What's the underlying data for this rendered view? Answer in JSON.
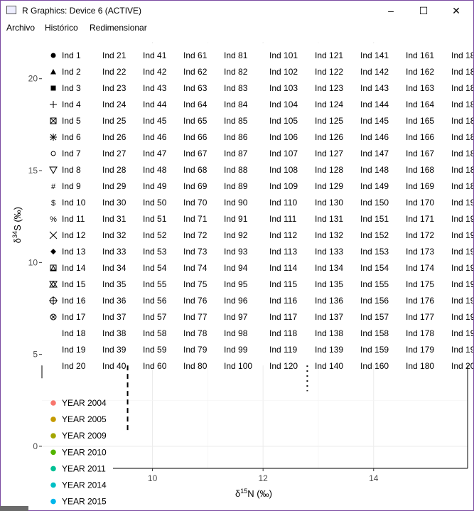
{
  "window": {
    "title": "R Graphics: Device 6 (ACTIVE)",
    "controls": {
      "minimize": "–",
      "maximize": "☐",
      "close": "✕"
    }
  },
  "menu": [
    "Archivo",
    "Histórico",
    "Redimensionar"
  ],
  "chart_data": {
    "type": "scatter",
    "xlabel": "δ15N (‰)",
    "ylabel": "δ34S (‰)",
    "x_ticks": [
      10,
      12,
      14
    ],
    "y_ticks": [
      0,
      5,
      10,
      15,
      20
    ],
    "xlim": [
      8.0,
      15.7
    ],
    "ylim": [
      -1.2,
      22.0
    ],
    "grid": true,
    "vertical_reference_lines": [
      {
        "x": 9.55,
        "y_from": 0.7,
        "y_to": 4.4,
        "style": "dashed"
      },
      {
        "x": 12.8,
        "y_from": 3.0,
        "y_to": 4.4,
        "style": "dotted"
      }
    ],
    "legend_individuals": {
      "labels": [
        "Ind 1",
        "Ind 2",
        "Ind 3",
        "Ind 4",
        "Ind 5",
        "Ind 6",
        "Ind 7",
        "Ind 8",
        "Ind 9",
        "Ind 10",
        "Ind 11",
        "Ind 12",
        "Ind 13",
        "Ind 14",
        "Ind 15",
        "Ind 16",
        "Ind 17",
        "Ind 18",
        "Ind 19",
        "Ind 20",
        "Ind 21",
        "Ind 22",
        "Ind 23",
        "Ind 24",
        "Ind 25",
        "Ind 26",
        "Ind 27",
        "Ind 28",
        "Ind 29",
        "Ind 30",
        "Ind 31",
        "Ind 32",
        "Ind 33",
        "Ind 34",
        "Ind 35",
        "Ind 36",
        "Ind 37",
        "Ind 38",
        "Ind 39",
        "Ind 40",
        "Ind 41",
        "Ind 42",
        "Ind 43",
        "Ind 44",
        "Ind 45",
        "Ind 46",
        "Ind 47",
        "Ind 48",
        "Ind 49",
        "Ind 50",
        "Ind 51",
        "Ind 52",
        "Ind 53",
        "Ind 54",
        "Ind 55",
        "Ind 56",
        "Ind 57",
        "Ind 58",
        "Ind 59",
        "Ind 60",
        "Ind 61",
        "Ind 62",
        "Ind 63",
        "Ind 64",
        "Ind 65",
        "Ind 66",
        "Ind 67",
        "Ind 68",
        "Ind 69",
        "Ind 70",
        "Ind 71",
        "Ind 72",
        "Ind 73",
        "Ind 74",
        "Ind 75",
        "Ind 76",
        "Ind 77",
        "Ind 78",
        "Ind 79",
        "Ind 80",
        "Ind 81",
        "Ind 82",
        "Ind 83",
        "Ind 84",
        "Ind 85",
        "Ind 86",
        "Ind 87",
        "Ind 88",
        "Ind 89",
        "Ind 90",
        "Ind 91",
        "Ind 92",
        "Ind 93",
        "Ind 94",
        "Ind 95",
        "Ind 96",
        "Ind 97",
        "Ind 98",
        "Ind 99",
        "Ind 100",
        "Ind 101",
        "Ind 102",
        "Ind 103",
        "Ind 104",
        "Ind 105",
        "Ind 106",
        "Ind 107",
        "Ind 108",
        "Ind 109",
        "Ind 110",
        "Ind 111",
        "Ind 112",
        "Ind 113",
        "Ind 114",
        "Ind 115",
        "Ind 116",
        "Ind 117",
        "Ind 118",
        "Ind 119",
        "Ind 120",
        "Ind 121",
        "Ind 122",
        "Ind 123",
        "Ind 124",
        "Ind 125",
        "Ind 126",
        "Ind 127",
        "Ind 128",
        "Ind 129",
        "Ind 130",
        "Ind 131",
        "Ind 132",
        "Ind 133",
        "Ind 134",
        "Ind 135",
        "Ind 136",
        "Ind 137",
        "Ind 138",
        "Ind 139",
        "Ind 140",
        "Ind 141",
        "Ind 142",
        "Ind 143",
        "Ind 144",
        "Ind 145",
        "Ind 146",
        "Ind 147",
        "Ind 148",
        "Ind 149",
        "Ind 150",
        "Ind 151",
        "Ind 152",
        "Ind 153",
        "Ind 154",
        "Ind 155",
        "Ind 156",
        "Ind 157",
        "Ind 158",
        "Ind 159",
        "Ind 160",
        "Ind 161",
        "Ind 162",
        "Ind 163",
        "Ind 164",
        "Ind 165",
        "Ind 166",
        "Ind 167",
        "Ind 168",
        "Ind 169",
        "Ind 170",
        "Ind 171",
        "Ind 172",
        "Ind 173",
        "Ind 174",
        "Ind 175",
        "Ind 176",
        "Ind 177",
        "Ind 178",
        "Ind 179",
        "Ind 180",
        "Ind 18",
        "Ind 18",
        "Ind 18",
        "Ind 18",
        "Ind 18",
        "Ind 18",
        "Ind 18",
        "Ind 18",
        "Ind 18",
        "Ind 19",
        "Ind 19",
        "Ind 19",
        "Ind 19",
        "Ind 19",
        "Ind 19",
        "Ind 19",
        "Ind 19",
        "Ind 19",
        "Ind 19",
        "Ind 20"
      ],
      "symbols": [
        "circle",
        "triangle",
        "square",
        "plus",
        "boxx",
        "asterisk",
        "opencircle",
        "opentriangle",
        "#",
        "$",
        "%",
        "cross",
        "diamond",
        "boxtriangle",
        "hourglass",
        "circleplus",
        "circlex"
      ]
    },
    "legend_years": {
      "entries": [
        {
          "label": "YEAR 2004",
          "color": "#F8766D"
        },
        {
          "label": "YEAR 2005",
          "color": "#C49A00"
        },
        {
          "label": "YEAR 2009",
          "color": "#A3A500"
        },
        {
          "label": "YEAR 2010",
          "color": "#53B400"
        },
        {
          "label": "YEAR 2011",
          "color": "#00C094"
        },
        {
          "label": "YEAR 2014",
          "color": "#00BFC4"
        },
        {
          "label": "YEAR 2015",
          "color": "#00B6EB"
        }
      ]
    }
  }
}
